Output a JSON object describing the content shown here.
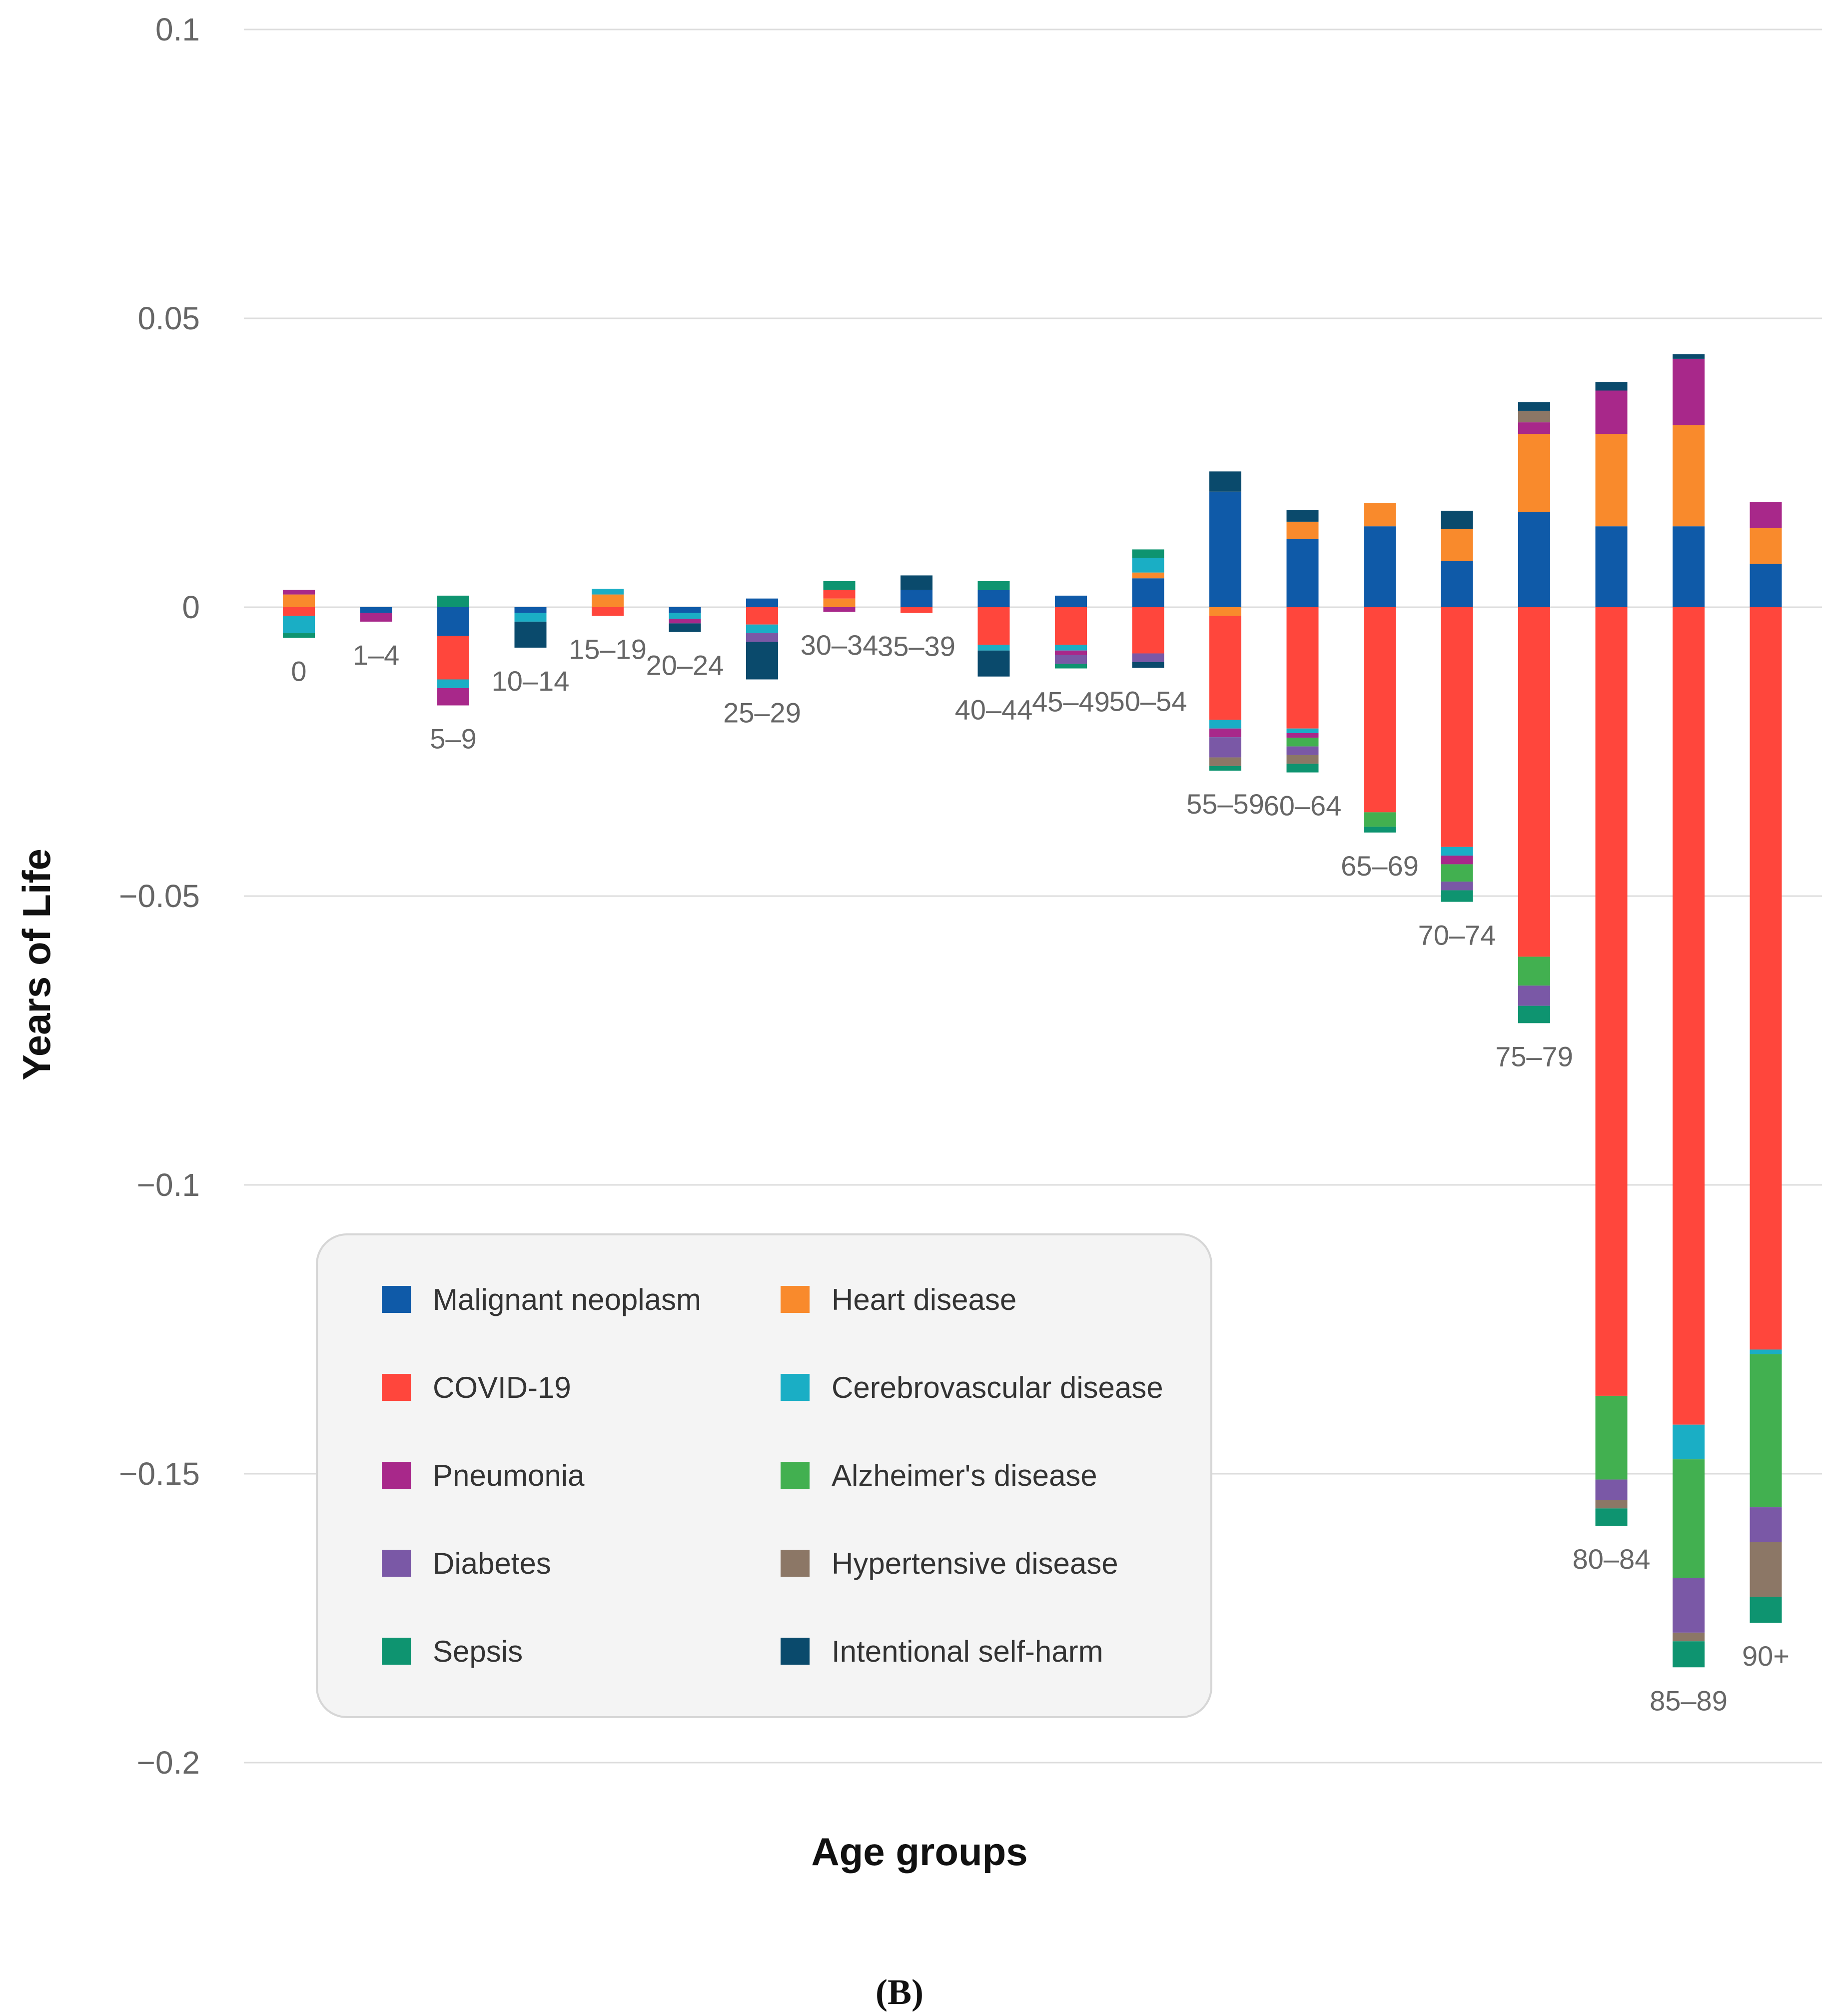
{
  "panel_label": "(B)",
  "chart_data": {
    "type": "bar",
    "stacked": true,
    "title": "",
    "xlabel": "Age groups",
    "ylabel": "Years of Life",
    "ylim": [
      -0.2,
      0.1
    ],
    "yticks": [
      0.1,
      0.05,
      0,
      -0.05,
      -0.1,
      -0.15,
      -0.2
    ],
    "ytick_labels": [
      "0.1",
      "0.05",
      "0",
      "−0.05",
      "−0.1",
      "−0.15",
      "−0.2"
    ],
    "grid": true,
    "legend_position": "bottom-left",
    "categories": [
      "0",
      "1–4",
      "5–9",
      "10–14",
      "15–19",
      "20–24",
      "25–29",
      "30–34",
      "35–39",
      "40–44",
      "45–49",
      "50–54",
      "55–59",
      "60–64",
      "65–69",
      "70–74",
      "75–79",
      "80–84",
      "85–89",
      "90+"
    ],
    "series": [
      {
        "name": "Malignant neoplasm",
        "color": "#0F5AA8",
        "values": [
          0,
          -0.001,
          -0.005,
          -0.001,
          0,
          -0.001,
          0.0015,
          0,
          0.003,
          0.003,
          0.002,
          0.005,
          0.02,
          0.0118,
          0.014,
          0.008,
          0.0165,
          0.014,
          0.014,
          0.0075
        ]
      },
      {
        "name": "Heart disease",
        "color": "#F98A2C",
        "values": [
          0.0022,
          0,
          0,
          0,
          0.0022,
          0,
          0,
          0.0015,
          0,
          0,
          0,
          0.001,
          -0.0015,
          0.003,
          0.004,
          0.0055,
          0.0135,
          0.016,
          0.0175,
          0.0062
        ]
      },
      {
        "name": "COVID-19",
        "color": "#FF463C",
        "values": [
          -0.0015,
          0,
          -0.0075,
          0,
          -0.0015,
          0,
          -0.003,
          0.0015,
          -0.001,
          -0.0065,
          -0.0065,
          -0.008,
          -0.018,
          -0.021,
          -0.0355,
          -0.0415,
          -0.0605,
          -0.1365,
          -0.1415,
          -0.1285
        ]
      },
      {
        "name": "Cerebrovascular disease",
        "color": "#1AAEC5",
        "values": [
          -0.003,
          0,
          -0.0015,
          -0.0015,
          0.001,
          -0.001,
          -0.0015,
          0,
          0,
          -0.001,
          -0.001,
          0.0025,
          -0.0015,
          -0.0008,
          0,
          -0.0015,
          0,
          0,
          -0.006,
          -0.0008
        ]
      },
      {
        "name": "Pneumonia",
        "color": "#A8288A",
        "values": [
          0.0008,
          -0.0015,
          -0.003,
          0,
          0,
          -0.0008,
          0,
          -0.0008,
          0,
          0,
          -0.0008,
          0,
          -0.0015,
          -0.0008,
          0,
          -0.0015,
          0.002,
          0.0075,
          0.0115,
          0.0045
        ]
      },
      {
        "name": "Alzheimer's disease",
        "color": "#42B050",
        "values": [
          0,
          0,
          0,
          0,
          0,
          0,
          0,
          0,
          0,
          0,
          0,
          0,
          0,
          -0.0015,
          -0.0025,
          -0.003,
          -0.005,
          -0.0145,
          -0.0205,
          -0.0265
        ]
      },
      {
        "name": "Diabetes",
        "color": "#7A58A6",
        "values": [
          0,
          0,
          0,
          0,
          0,
          0,
          -0.0015,
          0,
          0,
          0,
          -0.0015,
          -0.0015,
          -0.0035,
          -0.0015,
          0,
          -0.0015,
          -0.0035,
          -0.0035,
          -0.0095,
          -0.006
        ]
      },
      {
        "name": "Hypertensive disease",
        "color": "#8C7766",
        "values": [
          0,
          0,
          0,
          0,
          0,
          0,
          0,
          0,
          0,
          0,
          0,
          0,
          -0.0015,
          -0.0015,
          0,
          0,
          0.002,
          -0.0015,
          -0.0015,
          -0.0095
        ]
      },
      {
        "name": "Sepsis",
        "color": "#0E9470",
        "values": [
          -0.0008,
          0,
          0.002,
          0,
          0,
          0,
          0,
          0.0015,
          0,
          0.0015,
          -0.0008,
          0.0015,
          -0.0008,
          -0.0015,
          -0.001,
          -0.002,
          -0.003,
          -0.003,
          -0.0045,
          -0.0045
        ]
      },
      {
        "name": "Intentional self-harm",
        "color": "#0A4A6C",
        "values": [
          0,
          0,
          0,
          -0.0045,
          0,
          -0.0015,
          -0.0065,
          0,
          0.0025,
          -0.0045,
          0,
          -0.001,
          0.0035,
          0.002,
          0,
          0.0032,
          0.0015,
          0.0015,
          0.0008,
          0
        ]
      }
    ]
  }
}
